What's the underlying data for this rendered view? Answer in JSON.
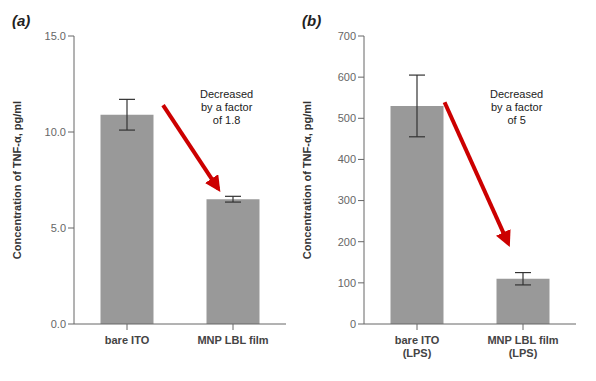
{
  "chart_data": [
    {
      "type": "bar",
      "title": "(a)",
      "categories": [
        "bare ITO",
        "MNP LBL film"
      ],
      "values": [
        10.9,
        6.5
      ],
      "errors": [
        0.8,
        0.15
      ],
      "color": "#999999",
      "ylim": [
        0,
        15.0
      ],
      "yticks": [
        {
          "value": 0.0,
          "label": "0.0"
        },
        {
          "value": 5.0,
          "label": "5.0"
        },
        {
          "value": 10.0,
          "label": "10.0"
        },
        {
          "value": 15.0,
          "label": "15.0"
        }
      ],
      "ylabel": "Concentration of TNF-α, pg/ml",
      "annotations": [
        "Decreased\nby a factor\nof 1.8"
      ]
    },
    {
      "type": "bar",
      "title": "(b)",
      "categories": [
        "bare ITO\n(LPS)",
        "MNP LBL film\n(LPS)"
      ],
      "values": [
        530,
        110
      ],
      "errors": [
        75,
        15
      ],
      "color": "#999999",
      "ylim": [
        0,
        700
      ],
      "yticks": [
        0,
        100,
        200,
        300,
        400,
        500,
        600,
        700
      ],
      "ylabel": "Concentration of TNF-α, pg/ml",
      "annotations": [
        "Decreased\nby a factor\nof 5"
      ]
    }
  ]
}
